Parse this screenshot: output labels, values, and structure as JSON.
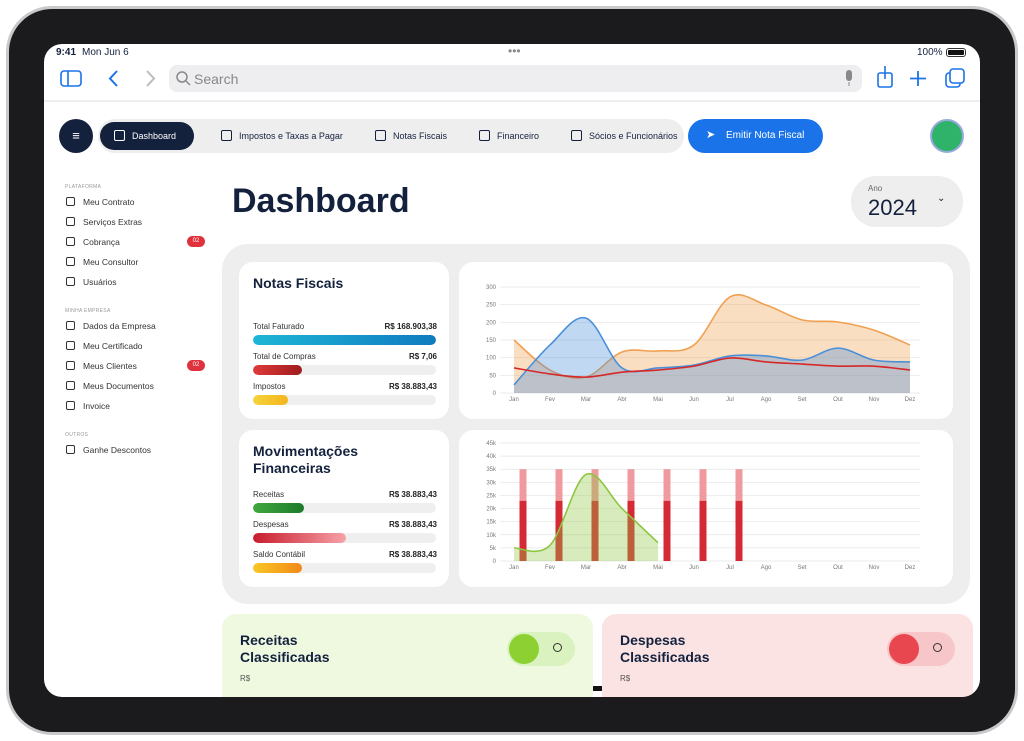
{
  "status": {
    "time": "9:41",
    "date": "Mon Jun 6",
    "battery": "100%"
  },
  "browser": {
    "search": "Search"
  },
  "nav": {
    "tabs": [
      "Dashboard",
      "Impostos e Taxas a Pagar",
      "Notas Fiscais",
      "Financeiro",
      "Sócios e Funcionários"
    ],
    "button": "Emitir Nota Fiscal"
  },
  "sidebar": {
    "sections": [
      {
        "title": "PLATAFORMA",
        "items": [
          {
            "label": "Meu Contrato"
          },
          {
            "label": "Serviços Extras"
          },
          {
            "label": "Cobrança",
            "badge": "02"
          },
          {
            "label": "Meu Consultor"
          },
          {
            "label": "Usuários"
          }
        ]
      },
      {
        "title": "MINHA EMPRESA",
        "items": [
          {
            "label": "Dados da Empresa"
          },
          {
            "label": "Meu Certificado"
          },
          {
            "label": "Meus Clientes",
            "badge": "02"
          },
          {
            "label": "Meus Documentos"
          },
          {
            "label": "Invoice"
          }
        ]
      },
      {
        "title": "OUTROS",
        "items": [
          {
            "label": "Ganhe Descontos"
          }
        ]
      }
    ]
  },
  "header": {
    "title": "Dashboard",
    "year_label": "Ano",
    "year": "2024"
  },
  "cards": [
    {
      "title": "Notas Fiscais",
      "rows": [
        {
          "label": "Total Faturado",
          "value": "R$ 168.903,38",
          "progress": 100
        },
        {
          "label": "Total de Compras",
          "value": "R$ 7,06",
          "progress": 27
        },
        {
          "label": "Impostos",
          "value": "R$ 38.883,43",
          "progress": 19
        }
      ]
    },
    {
      "title": "Movimentações Financeiras",
      "rows": [
        {
          "label": "Receitas",
          "value": "R$ 38.883,43",
          "progress": 28
        },
        {
          "label": "Despesas",
          "value": "R$ 38.883,43",
          "progress": 51
        },
        {
          "label": "Saldo Contábil",
          "value": "R$ 38.883,43",
          "progress": 27
        }
      ]
    }
  ],
  "chart_data": [
    {
      "type": "line",
      "categories": [
        "Jan",
        "Fev",
        "Mar",
        "Abr",
        "Mai",
        "Jun",
        "Jul",
        "Ago",
        "Set",
        "Out",
        "Nov",
        "Dez"
      ],
      "ylim": [
        0,
        300
      ],
      "yticks": [
        0,
        50,
        100,
        150,
        200,
        250,
        300
      ],
      "grid": true,
      "series": [
        {
          "color": "#f0a050",
          "area": true,
          "values": [
            150,
            65,
            45,
            116,
            119,
            136,
            272,
            249,
            207,
            201,
            178,
            136
          ]
        },
        {
          "color": "#4a90d9",
          "area": true,
          "values": [
            23,
            136,
            212,
            71,
            71,
            79,
            105,
            105,
            93,
            127,
            93,
            88
          ]
        },
        {
          "color": "#d62828",
          "area": false,
          "values": [
            71,
            54,
            45,
            59,
            65,
            76,
            99,
            88,
            82,
            76,
            76,
            65
          ]
        }
      ]
    },
    {
      "type": "combo",
      "categories": [
        "Jan",
        "Fev",
        "Mar",
        "Abr",
        "Mai",
        "Jun",
        "Jul",
        "Ago",
        "Set",
        "Out",
        "Nov",
        "Dez"
      ],
      "ylim": [
        0,
        45000
      ],
      "yticks": [
        0,
        {
          "value": 5000,
          "label": "5k"
        },
        {
          "value": 10000,
          "label": "10k"
        },
        {
          "value": 15000,
          "label": "15k"
        },
        {
          "value": 20000,
          "label": "20k"
        },
        {
          "value": 25000,
          "label": "25k"
        },
        {
          "value": 30000,
          "label": "30k"
        },
        {
          "value": 35000,
          "label": "35k"
        },
        {
          "value": 40000,
          "label": "40k"
        },
        {
          "value": 45000,
          "label": "45k"
        }
      ],
      "grid": true,
      "series": [
        {
          "kind": "bar",
          "color": "#d42a35",
          "values": [
            23000,
            23000,
            23000,
            23000,
            23000,
            23000,
            23000,
            null,
            null,
            null,
            null,
            null
          ]
        },
        {
          "kind": "bar",
          "color": "#ef9a9f",
          "values": [
            12000,
            12000,
            12000,
            12000,
            12000,
            12000,
            12000,
            null,
            null,
            null,
            null,
            null
          ]
        },
        {
          "kind": "area",
          "color": "#8cc63f",
          "values": [
            5000,
            6000,
            33000,
            20000,
            7000,
            null,
            null,
            null,
            null,
            null,
            null,
            null
          ]
        }
      ]
    }
  ],
  "bottom": [
    {
      "title": "Receitas Classificadas",
      "currency": "R$"
    },
    {
      "title": "Despesas Classificadas",
      "currency": "R$"
    }
  ]
}
